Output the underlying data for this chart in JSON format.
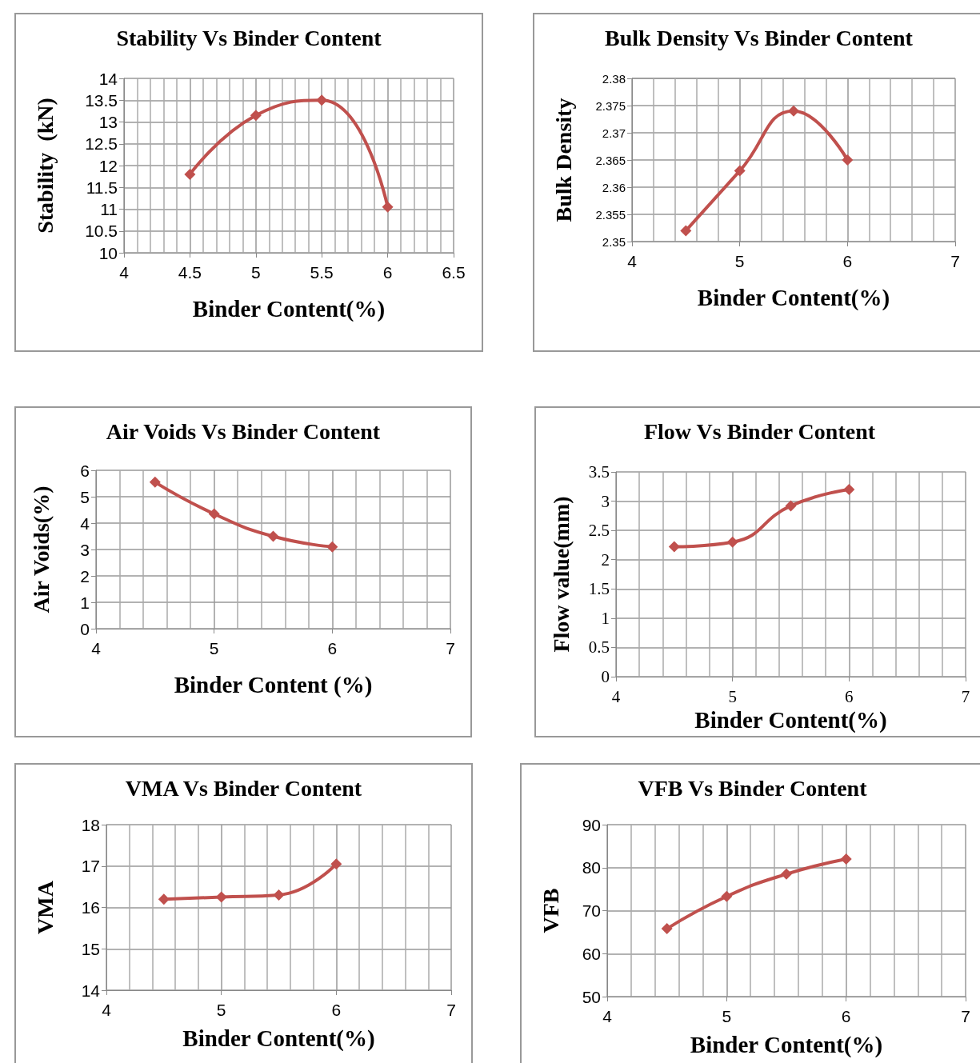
{
  "chart_data": [
    {
      "type": "line",
      "title": "Stability Vs Binder Content",
      "xlabel": "Binder Content(%)",
      "ylabel": "Stability  (kN)",
      "x": [
        4.5,
        5,
        5.5,
        6
      ],
      "series": [
        {
          "color": "#c0504d",
          "values": [
            11.8,
            13.15,
            13.5,
            11.05
          ]
        }
      ],
      "xlim": [
        4,
        6.5
      ],
      "xticks": [
        4,
        4.5,
        5,
        5.5,
        6,
        6.5
      ],
      "ylim": [
        10,
        14
      ],
      "yticks": [
        10,
        10.5,
        11,
        11.5,
        12,
        12.5,
        13,
        13.5,
        14
      ],
      "grid": true,
      "marker": "diamond"
    },
    {
      "type": "line",
      "title": "Bulk Density Vs Binder Content",
      "xlabel": "Binder Content(%)",
      "ylabel": "Bulk Density",
      "x": [
        4.5,
        5,
        5.5,
        6
      ],
      "series": [
        {
          "color": "#c0504d",
          "values": [
            2.352,
            2.363,
            2.374,
            2.365
          ]
        }
      ],
      "xlim": [
        4,
        7
      ],
      "xticks": [
        4,
        5,
        6,
        7
      ],
      "ylim": [
        2.35,
        2.38
      ],
      "yticks": [
        2.35,
        2.355,
        2.36,
        2.365,
        2.37,
        2.375,
        2.38
      ],
      "grid": true,
      "marker": "diamond"
    },
    {
      "type": "line",
      "title": "Air Voids Vs Binder Content",
      "xlabel": "Binder Content (%)",
      "ylabel": "Air Voids(%)",
      "x": [
        4.5,
        5,
        5.5,
        6
      ],
      "series": [
        {
          "color": "#c0504d",
          "values": [
            5.55,
            4.35,
            3.5,
            3.1
          ]
        }
      ],
      "xlim": [
        4,
        7
      ],
      "xticks": [
        4,
        5,
        6,
        7
      ],
      "ylim": [
        0,
        6
      ],
      "yticks": [
        0,
        1,
        2,
        3,
        4,
        5,
        6
      ],
      "grid": true,
      "marker": "diamond"
    },
    {
      "type": "line",
      "title": "Flow Vs Binder Content",
      "xlabel": "Binder Content(%)",
      "ylabel": "Flow value(mm)",
      "x": [
        4.5,
        5,
        5.5,
        6
      ],
      "series": [
        {
          "color": "#c0504d",
          "values": [
            2.22,
            2.3,
            2.92,
            3.2
          ]
        }
      ],
      "xlim": [
        4,
        7
      ],
      "xticks": [
        4,
        5,
        6,
        7
      ],
      "ylim": [
        0,
        3.5
      ],
      "yticks": [
        0,
        0.5,
        1,
        1.5,
        2,
        2.5,
        3,
        3.5
      ],
      "grid": true,
      "marker": "diamond"
    },
    {
      "type": "line",
      "title": "VMA Vs Binder Content",
      "xlabel": "Binder Content(%)",
      "ylabel": "VMA",
      "x": [
        4.5,
        5,
        5.5,
        6
      ],
      "series": [
        {
          "color": "#c0504d",
          "values": [
            16.2,
            16.25,
            16.3,
            17.05
          ]
        }
      ],
      "xlim": [
        4,
        7
      ],
      "xticks": [
        4,
        5,
        6,
        7
      ],
      "ylim": [
        14,
        18
      ],
      "yticks": [
        14,
        15,
        16,
        17,
        18
      ],
      "grid": true,
      "marker": "diamond"
    },
    {
      "type": "line",
      "title": "VFB Vs Binder Content",
      "xlabel": "Binder Content(%)",
      "ylabel": "VFB",
      "x": [
        4.5,
        5,
        5.5,
        6
      ],
      "series": [
        {
          "color": "#c0504d",
          "values": [
            65.8,
            73.3,
            78.5,
            82
          ]
        }
      ],
      "xlim": [
        4,
        7
      ],
      "xticks": [
        4,
        5,
        6,
        7
      ],
      "ylim": [
        50,
        90
      ],
      "yticks": [
        50,
        60,
        70,
        80,
        90
      ],
      "grid": true,
      "marker": "diamond"
    }
  ]
}
